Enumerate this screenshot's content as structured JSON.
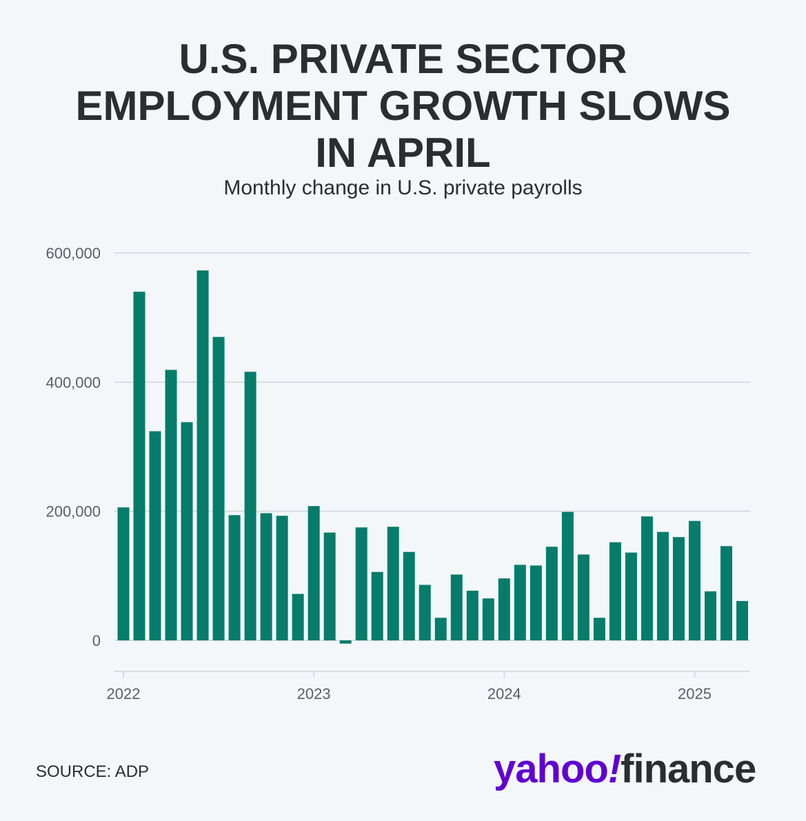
{
  "header": {
    "title_line1": "U.S. PRIVATE SECTOR",
    "title_line2": "EMPLOYMENT GROWTH SLOWS",
    "title_line3": "IN APRIL",
    "subtitle": "Monthly change in U.S. private payrolls"
  },
  "footer": {
    "source": "SOURCE: ADP",
    "logo_yahoo": "yahoo",
    "logo_bang": "!",
    "logo_finance": "finance"
  },
  "colors": {
    "bar": "#067c6a",
    "grid": "#d8dce1",
    "axis_text": "#5b5e63",
    "brand_purple": "#6001d2"
  },
  "chart_data": {
    "type": "bar",
    "title": "U.S. PRIVATE SECTOR EMPLOYMENT GROWTH SLOWS IN APRIL",
    "subtitle": "Monthly change in U.S. private payrolls",
    "xlabel": "",
    "ylabel": "",
    "ylim": [
      -50000,
      600000
    ],
    "yticks": [
      0,
      200000,
      400000,
      600000
    ],
    "ytick_labels": [
      "0",
      "200,000",
      "400,000",
      "600,000"
    ],
    "xtick_labels": [
      "2022",
      "2023",
      "2024",
      "2025"
    ],
    "grid": true,
    "categories": [
      "2022-01",
      "2022-02",
      "2022-03",
      "2022-04",
      "2022-05",
      "2022-06",
      "2022-07",
      "2022-08",
      "2022-09",
      "2022-10",
      "2022-11",
      "2022-12",
      "2023-01",
      "2023-02",
      "2023-03",
      "2023-04",
      "2023-05",
      "2023-06",
      "2023-07",
      "2023-08",
      "2023-09",
      "2023-10",
      "2023-11",
      "2023-12",
      "2024-01",
      "2024-02",
      "2024-03",
      "2024-04",
      "2024-05",
      "2024-06",
      "2024-07",
      "2024-08",
      "2024-09",
      "2024-10",
      "2024-11",
      "2024-12",
      "2025-01",
      "2025-02",
      "2025-03",
      "2025-04"
    ],
    "values": [
      206000,
      540000,
      324000,
      419000,
      338000,
      573000,
      470000,
      194000,
      416000,
      197000,
      193000,
      72000,
      208000,
      167000,
      -5000,
      175000,
      106000,
      176000,
      137000,
      86000,
      35000,
      102000,
      77000,
      65000,
      96000,
      117000,
      116000,
      145000,
      199000,
      133000,
      35000,
      152000,
      136000,
      192000,
      168000,
      160000,
      185000,
      76000,
      146000,
      61000
    ]
  }
}
